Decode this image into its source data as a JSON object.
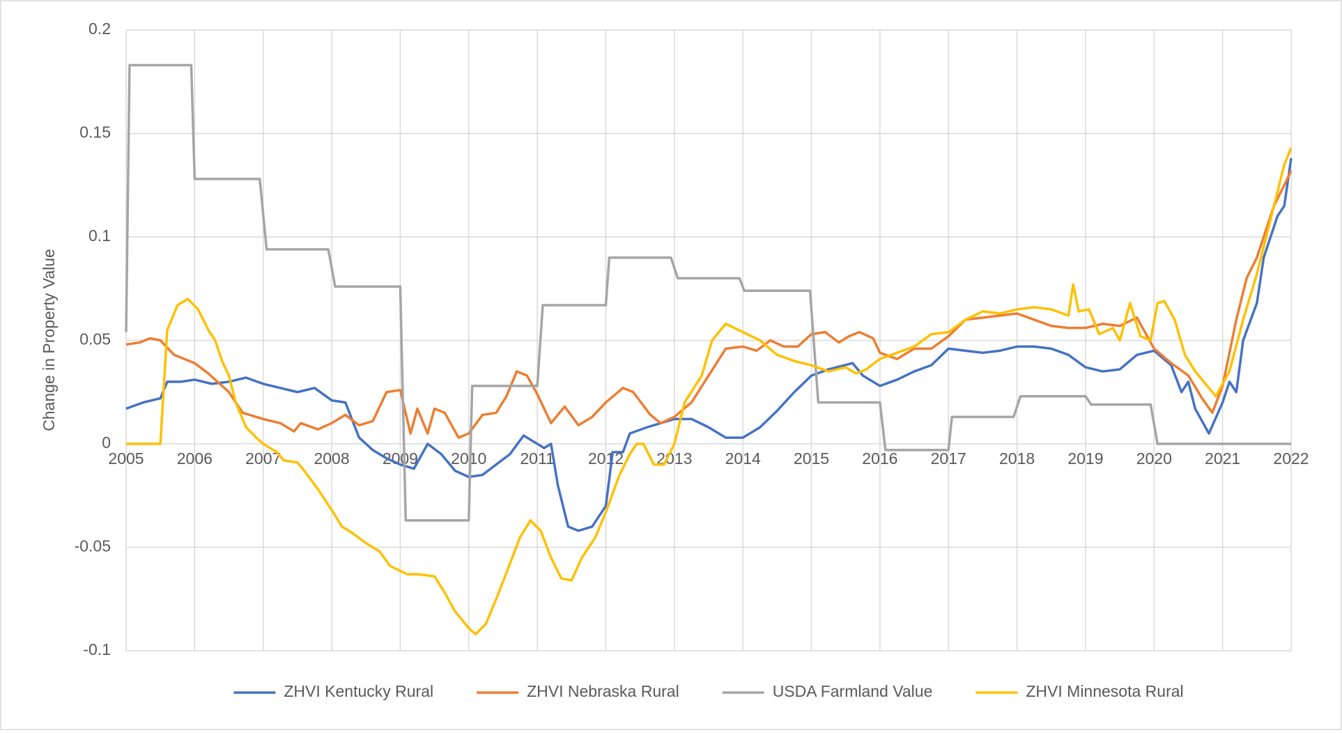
{
  "chart_data": {
    "type": "line",
    "y_label": "Change in Property  Value",
    "xlim": [
      2005,
      2022
    ],
    "xticks": [
      2005,
      2006,
      2007,
      2008,
      2009,
      2010,
      2011,
      2012,
      2013,
      2014,
      2015,
      2016,
      2017,
      2018,
      2019,
      2020,
      2021,
      2022
    ],
    "ylim": [
      -0.1,
      0.2
    ],
    "yticks": [
      -0.1,
      -0.05,
      0,
      0.05,
      0.1,
      0.15,
      0.2
    ],
    "grid": true,
    "legend": "bottom",
    "series": [
      {
        "name": "ZHVI Kentucky Rural",
        "color": "#4472c4",
        "x": [
          2005,
          2005.25,
          2005.5,
          2005.6,
          2005.8,
          2006,
          2006.25,
          2006.5,
          2006.75,
          2007,
          2007.25,
          2007.5,
          2007.75,
          2008,
          2008.2,
          2008.4,
          2008.6,
          2008.8,
          2009,
          2009.2,
          2009.4,
          2009.6,
          2009.8,
          2010,
          2010.2,
          2010.4,
          2010.6,
          2010.8,
          2011,
          2011.1,
          2011.2,
          2011.3,
          2011.45,
          2011.6,
          2011.8,
          2012,
          2012.1,
          2012.25,
          2012.35,
          2012.6,
          2012.8,
          2013,
          2013.25,
          2013.5,
          2013.75,
          2014,
          2014.25,
          2014.5,
          2014.75,
          2015,
          2015.25,
          2015.6,
          2015.75,
          2016,
          2016.25,
          2016.5,
          2016.75,
          2017,
          2017.25,
          2017.5,
          2017.75,
          2018,
          2018.25,
          2018.5,
          2018.75,
          2019,
          2019.25,
          2019.5,
          2019.75,
          2020,
          2020.25,
          2020.4,
          2020.5,
          2020.6,
          2020.8,
          2021,
          2021.1,
          2021.2,
          2021.3,
          2021.5,
          2021.6,
          2021.8,
          2021.9,
          2022
        ],
        "values": [
          0.017,
          0.02,
          0.022,
          0.03,
          0.03,
          0.031,
          0.029,
          0.03,
          0.032,
          0.029,
          0.027,
          0.025,
          0.027,
          0.021,
          0.02,
          0.003,
          -0.003,
          -0.007,
          -0.01,
          -0.012,
          0.0,
          -0.005,
          -0.013,
          -0.016,
          -0.015,
          -0.01,
          -0.005,
          0.004,
          0.0,
          -0.002,
          0.0,
          -0.02,
          -0.04,
          -0.042,
          -0.04,
          -0.03,
          -0.004,
          -0.004,
          0.005,
          0.008,
          0.01,
          0.012,
          0.012,
          0.008,
          0.003,
          0.003,
          0.008,
          0.016,
          0.025,
          0.033,
          0.036,
          0.039,
          0.033,
          0.028,
          0.031,
          0.035,
          0.038,
          0.046,
          0.045,
          0.044,
          0.045,
          0.047,
          0.047,
          0.046,
          0.043,
          0.037,
          0.035,
          0.036,
          0.043,
          0.045,
          0.038,
          0.025,
          0.03,
          0.017,
          0.005,
          0.02,
          0.03,
          0.025,
          0.05,
          0.068,
          0.09,
          0.11,
          0.115,
          0.138
        ]
      },
      {
        "name": "ZHVI Nebraska Rural",
        "color": "#ed7d31",
        "x": [
          2005,
          2005.2,
          2005.35,
          2005.5,
          2005.7,
          2006,
          2006.2,
          2006.5,
          2006.7,
          2007,
          2007.25,
          2007.45,
          2007.55,
          2007.8,
          2008,
          2008.2,
          2008.4,
          2008.6,
          2008.8,
          2009,
          2009.15,
          2009.25,
          2009.4,
          2009.5,
          2009.65,
          2009.85,
          2010,
          2010.2,
          2010.4,
          2010.55,
          2010.7,
          2010.85,
          2011,
          2011.2,
          2011.4,
          2011.6,
          2011.8,
          2012,
          2012.25,
          2012.4,
          2012.65,
          2012.8,
          2013,
          2013.25,
          2013.5,
          2013.75,
          2014,
          2014.2,
          2014.4,
          2014.6,
          2014.8,
          2015,
          2015.2,
          2015.4,
          2015.55,
          2015.7,
          2015.9,
          2016,
          2016.25,
          2016.5,
          2016.75,
          2017,
          2017.25,
          2017.5,
          2017.75,
          2018,
          2018.25,
          2018.5,
          2018.75,
          2019,
          2019.25,
          2019.5,
          2019.75,
          2020,
          2020.25,
          2020.5,
          2020.7,
          2020.85,
          2021,
          2021.2,
          2021.35,
          2021.5,
          2021.75,
          2021.9,
          2022
        ],
        "values": [
          0.048,
          0.049,
          0.051,
          0.05,
          0.043,
          0.039,
          0.034,
          0.025,
          0.015,
          0.012,
          0.01,
          0.006,
          0.01,
          0.007,
          0.01,
          0.014,
          0.009,
          0.011,
          0.025,
          0.026,
          0.005,
          0.017,
          0.005,
          0.017,
          0.015,
          0.003,
          0.005,
          0.014,
          0.015,
          0.023,
          0.035,
          0.033,
          0.024,
          0.01,
          0.018,
          0.009,
          0.013,
          0.02,
          0.027,
          0.025,
          0.014,
          0.01,
          0.013,
          0.02,
          0.033,
          0.046,
          0.047,
          0.045,
          0.05,
          0.047,
          0.047,
          0.053,
          0.054,
          0.049,
          0.052,
          0.054,
          0.051,
          0.044,
          0.041,
          0.046,
          0.046,
          0.052,
          0.06,
          0.061,
          0.062,
          0.063,
          0.06,
          0.057,
          0.056,
          0.056,
          0.058,
          0.057,
          0.061,
          0.046,
          0.039,
          0.033,
          0.022,
          0.015,
          0.028,
          0.06,
          0.08,
          0.09,
          0.115,
          0.125,
          0.132
        ]
      },
      {
        "name": "USDA Farmland Value",
        "color": "#a5a5a5",
        "x": [
          2005,
          2005.05,
          2005.95,
          2006,
          2006.95,
          2007.05,
          2007.95,
          2008.05,
          2009,
          2009.08,
          2010,
          2010.05,
          2011,
          2011.08,
          2012,
          2012.05,
          2012.95,
          2013.05,
          2013.95,
          2014.02,
          2014.98,
          2015.1,
          2016,
          2016.08,
          2017,
          2017.05,
          2017.95,
          2018.05,
          2019,
          2019.08,
          2019.95,
          2020.05,
          2022
        ],
        "values": [
          0.054,
          0.183,
          0.183,
          0.128,
          0.128,
          0.094,
          0.094,
          0.076,
          0.076,
          -0.037,
          -0.037,
          0.028,
          0.028,
          0.067,
          0.067,
          0.09,
          0.09,
          0.08,
          0.08,
          0.074,
          0.074,
          0.02,
          0.02,
          -0.003,
          -0.003,
          0.013,
          0.013,
          0.023,
          0.023,
          0.019,
          0.019,
          0,
          0
        ]
      },
      {
        "name": "ZHVI Minnesota Rural",
        "color": "#ffc000",
        "x": [
          2005,
          2005.5,
          2005.6,
          2005.75,
          2005.9,
          2006.05,
          2006.2,
          2006.3,
          2006.4,
          2006.5,
          2006.6,
          2006.75,
          2006.9,
          2007,
          2007.2,
          2007.3,
          2007.5,
          2007.6,
          2007.8,
          2008,
          2008.15,
          2008.3,
          2008.5,
          2008.7,
          2008.85,
          2009.1,
          2009.25,
          2009.5,
          2009.65,
          2009.8,
          2010,
          2010.1,
          2010.25,
          2010.4,
          2010.6,
          2010.75,
          2010.9,
          2011.05,
          2011.2,
          2011.35,
          2011.5,
          2011.65,
          2011.85,
          2012,
          2012.2,
          2012.35,
          2012.45,
          2012.55,
          2012.7,
          2012.85,
          2013,
          2013.15,
          2013.4,
          2013.55,
          2013.75,
          2014,
          2014.25,
          2014.5,
          2014.75,
          2015,
          2015.25,
          2015.5,
          2015.65,
          2015.8,
          2016,
          2016.25,
          2016.5,
          2016.75,
          2017,
          2017.25,
          2017.5,
          2017.75,
          2018,
          2018.25,
          2018.5,
          2018.75,
          2018.82,
          2018.9,
          2019.05,
          2019.2,
          2019.4,
          2019.5,
          2019.65,
          2019.8,
          2019.95,
          2020.05,
          2020.15,
          2020.3,
          2020.45,
          2020.6,
          2020.8,
          2020.9,
          2021.1,
          2021.3,
          2021.5,
          2021.75,
          2021.9,
          2022
        ],
        "values": [
          0,
          0,
          0.055,
          0.067,
          0.07,
          0.065,
          0.055,
          0.05,
          0.04,
          0.033,
          0.02,
          0.008,
          0.003,
          0.0,
          -0.004,
          -0.008,
          -0.009,
          -0.013,
          -0.022,
          -0.032,
          -0.04,
          -0.043,
          -0.048,
          -0.052,
          -0.059,
          -0.063,
          -0.063,
          -0.064,
          -0.072,
          -0.081,
          -0.089,
          -0.092,
          -0.087,
          -0.075,
          -0.058,
          -0.045,
          -0.037,
          -0.042,
          -0.055,
          -0.065,
          -0.066,
          -0.055,
          -0.045,
          -0.033,
          -0.015,
          -0.005,
          0.0,
          0.0,
          -0.01,
          -0.01,
          0.0,
          0.02,
          0.033,
          0.05,
          0.058,
          0.054,
          0.05,
          0.043,
          0.04,
          0.038,
          0.035,
          0.037,
          0.034,
          0.036,
          0.041,
          0.044,
          0.047,
          0.053,
          0.054,
          0.06,
          0.064,
          0.063,
          0.065,
          0.066,
          0.065,
          0.062,
          0.077,
          0.064,
          0.065,
          0.053,
          0.056,
          0.05,
          0.068,
          0.052,
          0.05,
          0.068,
          0.069,
          0.06,
          0.043,
          0.035,
          0.027,
          0.023,
          0.035,
          0.06,
          0.082,
          0.115,
          0.135,
          0.143
        ]
      }
    ]
  }
}
